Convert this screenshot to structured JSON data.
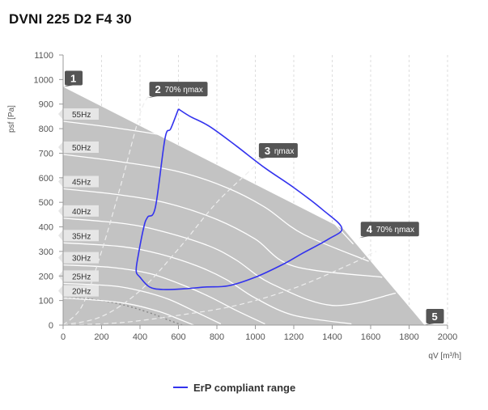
{
  "page": {
    "title": "DVNI 225 D2 F4 30"
  },
  "chart_data": {
    "type": "line",
    "xlabel": "qV [m³/h]",
    "ylabel": "psf [Pa]",
    "xlim": [
      0,
      2000
    ],
    "ylim": [
      0,
      1100
    ],
    "xticks": [
      0,
      200,
      400,
      600,
      800,
      1000,
      1200,
      1400,
      1600,
      1800,
      2000
    ],
    "yticks": [
      0,
      100,
      200,
      300,
      400,
      500,
      600,
      700,
      800,
      900,
      1000,
      1100
    ],
    "grid": "vertical-dashed",
    "legend_position": "bottom-center",
    "envelope": [
      [
        0,
        970
      ],
      [
        1460,
        390
      ],
      [
        1880,
        0
      ],
      [
        0,
        0
      ]
    ],
    "speed_curves": [
      {
        "name": "55Hz",
        "points": [
          [
            0,
            830
          ],
          [
            300,
            800
          ],
          [
            600,
            760
          ],
          [
            900,
            690
          ],
          [
            1100,
            610
          ],
          [
            1300,
            500
          ],
          [
            1510,
            330
          ]
        ]
      },
      {
        "name": "50Hz",
        "points": [
          [
            0,
            695
          ],
          [
            300,
            665
          ],
          [
            600,
            625
          ],
          [
            850,
            560
          ],
          [
            1050,
            480
          ],
          [
            1250,
            370
          ],
          [
            1590,
            260
          ]
        ]
      },
      {
        "name": "45Hz",
        "points": [
          [
            0,
            555
          ],
          [
            300,
            530
          ],
          [
            550,
            495
          ],
          [
            800,
            430
          ],
          [
            1000,
            350
          ],
          [
            1200,
            240
          ],
          [
            1660,
            195
          ]
        ]
      },
      {
        "name": "40Hz",
        "points": [
          [
            0,
            435
          ],
          [
            300,
            415
          ],
          [
            500,
            385
          ],
          [
            750,
            325
          ],
          [
            900,
            265
          ],
          [
            1080,
            170
          ],
          [
            1400,
            80
          ],
          [
            1730,
            130
          ]
        ]
      },
      {
        "name": "35Hz",
        "points": [
          [
            0,
            335
          ],
          [
            300,
            320
          ],
          [
            500,
            290
          ],
          [
            700,
            240
          ],
          [
            850,
            185
          ],
          [
            1000,
            110
          ],
          [
            1200,
            40
          ],
          [
            1500,
            5
          ]
        ]
      },
      {
        "name": "30Hz",
        "points": [
          [
            0,
            245
          ],
          [
            250,
            235
          ],
          [
            450,
            210
          ],
          [
            600,
            170
          ],
          [
            750,
            120
          ],
          [
            900,
            60
          ],
          [
            1050,
            5
          ]
        ]
      },
      {
        "name": "25Hz",
        "points": [
          [
            0,
            170
          ],
          [
            250,
            160
          ],
          [
            400,
            140
          ],
          [
            550,
            105
          ],
          [
            700,
            50
          ],
          [
            820,
            5
          ]
        ]
      },
      {
        "name": "20Hz",
        "points": [
          [
            0,
            110
          ],
          [
            200,
            100
          ],
          [
            350,
            85
          ],
          [
            500,
            55
          ],
          [
            600,
            25
          ],
          [
            680,
            0
          ]
        ]
      }
    ],
    "system_curves": [
      {
        "name": "70% ηmax",
        "points": [
          [
            0,
            0
          ],
          [
            100,
            80
          ],
          [
            200,
            300
          ],
          [
            300,
            570
          ],
          [
            400,
            860
          ],
          [
            450,
            940
          ]
        ]
      },
      {
        "name": "ηmax",
        "points": [
          [
            0,
            0
          ],
          [
            200,
            35
          ],
          [
            400,
            140
          ],
          [
            600,
            310
          ],
          [
            800,
            500
          ],
          [
            1000,
            650
          ],
          [
            1050,
            700
          ]
        ]
      },
      {
        "name": "70% ηmax",
        "points": [
          [
            0,
            0
          ],
          [
            300,
            10
          ],
          [
            600,
            40
          ],
          [
            900,
            80
          ],
          [
            1200,
            150
          ],
          [
            1500,
            250
          ],
          [
            1600,
            290
          ],
          [
            1630,
            300
          ]
        ]
      }
    ],
    "erp_dotted": {
      "points": [
        [
          0,
          110
        ],
        [
          150,
          105
        ],
        [
          300,
          85
        ],
        [
          450,
          50
        ],
        [
          550,
          20
        ],
        [
          620,
          0
        ]
      ]
    },
    "series": [
      {
        "name": "ErP compliant range",
        "color": "#3333ee",
        "points": [
          [
            600,
            880
          ],
          [
            660,
            850
          ],
          [
            760,
            810
          ],
          [
            900,
            730
          ],
          [
            1050,
            640
          ],
          [
            1200,
            560
          ],
          [
            1350,
            470
          ],
          [
            1450,
            395
          ],
          [
            1380,
            350
          ],
          [
            1240,
            290
          ],
          [
            1150,
            250
          ],
          [
            1000,
            195
          ],
          [
            860,
            160
          ],
          [
            740,
            155
          ],
          [
            630,
            148
          ],
          [
            520,
            145
          ],
          [
            450,
            155
          ],
          [
            400,
            195
          ],
          [
            380,
            220
          ],
          [
            390,
            280
          ],
          [
            420,
            400
          ],
          [
            440,
            440
          ],
          [
            480,
            480
          ],
          [
            530,
            760
          ],
          [
            560,
            800
          ]
        ]
      }
    ],
    "markers": [
      {
        "number": "1",
        "text": "",
        "point": [
          0,
          970
        ]
      },
      {
        "number": "2",
        "text": "70% ηmax",
        "point": [
          440,
          925
        ]
      },
      {
        "number": "3",
        "text": "ηmax",
        "point": [
          1010,
          675
        ]
      },
      {
        "number": "4",
        "text": "70% ηmax",
        "point": [
          1540,
          355
        ]
      },
      {
        "number": "5",
        "text": "",
        "point": [
          1880,
          0
        ]
      }
    ],
    "legend": {
      "label": "ErP compliant range"
    }
  }
}
